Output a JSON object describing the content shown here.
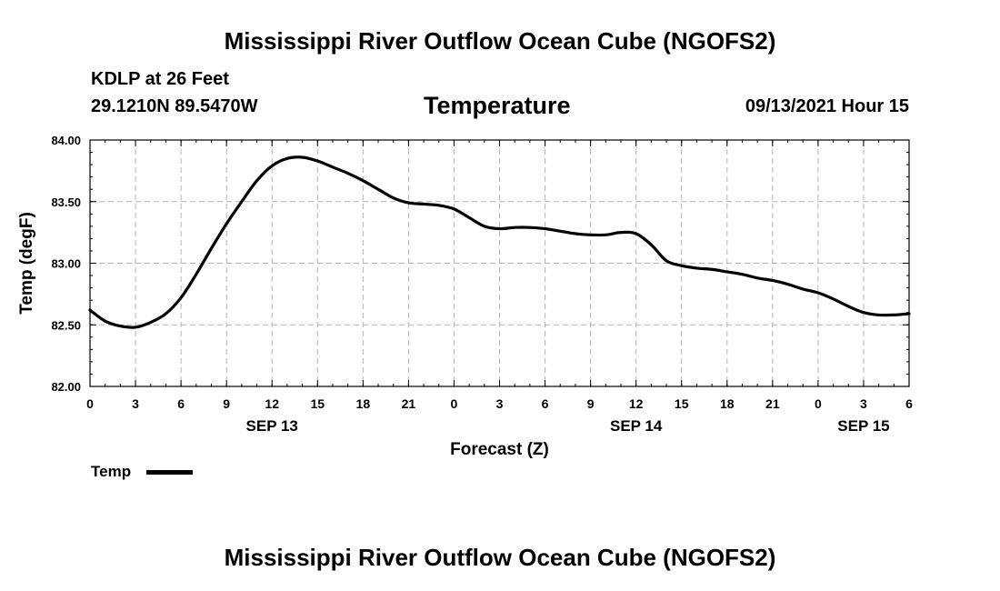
{
  "header": {
    "title": "Mississippi River Outflow Ocean Cube (NGOFS2)",
    "station": "KDLP at 26 Feet",
    "coords": "29.1210N  89.5470W",
    "variable": "Temperature",
    "datetime": "09/13/2021 Hour 15"
  },
  "footer": {
    "title": "Mississippi River Outflow Ocean Cube (NGOFS2)"
  },
  "legend": {
    "label": "Temp",
    "color": "#000000"
  },
  "chart_data": {
    "type": "line",
    "title": "Temperature",
    "xlabel": "Forecast (Z)",
    "ylabel": "Temp (degF)",
    "xlim": [
      0,
      54
    ],
    "ylim": [
      82.0,
      84.0
    ],
    "yticks": [
      "82.00",
      "82.50",
      "83.00",
      "83.50",
      "84.00"
    ],
    "yticks_values": [
      82.0,
      82.5,
      83.0,
      83.5,
      84.0
    ],
    "xticks": [
      {
        "h": 0,
        "label": "0"
      },
      {
        "h": 3,
        "label": "3"
      },
      {
        "h": 6,
        "label": "6"
      },
      {
        "h": 9,
        "label": "9"
      },
      {
        "h": 12,
        "label": "12"
      },
      {
        "h": 15,
        "label": "15"
      },
      {
        "h": 18,
        "label": "18"
      },
      {
        "h": 21,
        "label": "21"
      },
      {
        "h": 24,
        "label": "0"
      },
      {
        "h": 27,
        "label": "3"
      },
      {
        "h": 30,
        "label": "6"
      },
      {
        "h": 33,
        "label": "9"
      },
      {
        "h": 36,
        "label": "12"
      },
      {
        "h": 39,
        "label": "15"
      },
      {
        "h": 42,
        "label": "18"
      },
      {
        "h": 45,
        "label": "21"
      },
      {
        "h": 48,
        "label": "0"
      },
      {
        "h": 51,
        "label": "3"
      },
      {
        "h": 54,
        "label": "6"
      }
    ],
    "date_labels": [
      {
        "h": 12,
        "label": "SEP 13"
      },
      {
        "h": 36,
        "label": "SEP 14"
      },
      {
        "h": 51,
        "label": "SEP 15"
      }
    ],
    "grid": true,
    "series": [
      {
        "name": "Temp",
        "color": "#000000",
        "x": [
          0,
          1,
          2,
          3,
          4,
          5,
          6,
          7,
          8,
          9,
          10,
          11,
          12,
          13,
          14,
          15,
          16,
          17,
          18,
          19,
          20,
          21,
          22,
          23,
          24,
          25,
          26,
          27,
          28,
          29,
          30,
          31,
          32,
          33,
          34,
          35,
          36,
          37,
          38,
          39,
          40,
          41,
          42,
          43,
          44,
          45,
          46,
          47,
          48,
          49,
          50,
          51,
          52,
          53,
          54
        ],
        "values": [
          82.62,
          82.53,
          82.49,
          82.48,
          82.52,
          82.59,
          82.72,
          82.91,
          83.12,
          83.32,
          83.5,
          83.67,
          83.79,
          83.85,
          83.86,
          83.83,
          83.78,
          83.73,
          83.67,
          83.6,
          83.53,
          83.49,
          83.48,
          83.47,
          83.44,
          83.37,
          83.3,
          83.28,
          83.29,
          83.29,
          83.28,
          83.26,
          83.24,
          83.23,
          83.23,
          83.25,
          83.24,
          83.15,
          83.02,
          82.98,
          82.96,
          82.95,
          82.93,
          82.91,
          82.88,
          82.86,
          82.83,
          82.79,
          82.76,
          82.71,
          82.65,
          82.6,
          82.58,
          82.58,
          82.59
        ]
      }
    ]
  }
}
